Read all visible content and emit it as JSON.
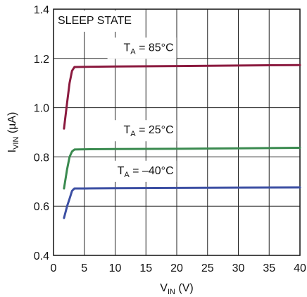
{
  "chart_data": {
    "type": "line",
    "note": "SLEEP STATE",
    "xlabel": {
      "main": "V",
      "sub": "IN",
      "rest": " (V)"
    },
    "ylabel": {
      "main": "I",
      "sub": "VIN",
      "rest": " (µA)"
    },
    "xlim": [
      0,
      40
    ],
    "ylim": [
      0.4,
      1.4
    ],
    "xticks": [
      0,
      5,
      10,
      15,
      20,
      25,
      30,
      35,
      40
    ],
    "yticks": [
      0.4,
      0.6,
      0.8,
      1.0,
      1.2,
      1.4
    ],
    "xtick_labels": [
      "0",
      "5",
      "10",
      "15",
      "20",
      "25",
      "30",
      "35",
      "40"
    ],
    "ytick_labels": [
      "0.4",
      "0.6",
      "0.8",
      "1.0",
      "1.2",
      "1.4"
    ],
    "grid": true,
    "series": [
      {
        "label": {
          "main": "T",
          "sub": "A",
          "rest": " = 85°C"
        },
        "color": "#8b1a3f",
        "label_at": [
          19.5,
          1.23
        ],
        "points": [
          [
            1.7,
            0.915
          ],
          [
            2.2,
            1.02
          ],
          [
            2.6,
            1.1
          ],
          [
            3.0,
            1.15
          ],
          [
            3.4,
            1.165
          ],
          [
            5,
            1.166
          ],
          [
            10,
            1.167
          ],
          [
            20,
            1.169
          ],
          [
            30,
            1.171
          ],
          [
            40,
            1.173
          ]
        ]
      },
      {
        "label": {
          "main": "T",
          "sub": "A",
          "rest": " = 25°C"
        },
        "color": "#3a8a4f",
        "label_at": [
          19.5,
          0.895
        ],
        "points": [
          [
            1.7,
            0.672
          ],
          [
            2.2,
            0.75
          ],
          [
            2.6,
            0.8
          ],
          [
            3.0,
            0.822
          ],
          [
            3.4,
            0.83
          ],
          [
            5,
            0.831
          ],
          [
            10,
            0.832
          ],
          [
            20,
            0.833
          ],
          [
            30,
            0.835
          ],
          [
            40,
            0.837
          ]
        ]
      },
      {
        "label": {
          "main": "T",
          "sub": "A",
          "rest": " = –40°C"
        },
        "color": "#3c4fa3",
        "label_at": [
          19.5,
          0.73
        ],
        "points": [
          [
            1.7,
            0.552
          ],
          [
            2.2,
            0.6
          ],
          [
            2.6,
            0.63
          ],
          [
            3.0,
            0.662
          ],
          [
            3.4,
            0.672
          ],
          [
            5,
            0.672
          ],
          [
            10,
            0.673
          ],
          [
            20,
            0.674
          ],
          [
            30,
            0.675
          ],
          [
            40,
            0.676
          ]
        ]
      }
    ]
  }
}
